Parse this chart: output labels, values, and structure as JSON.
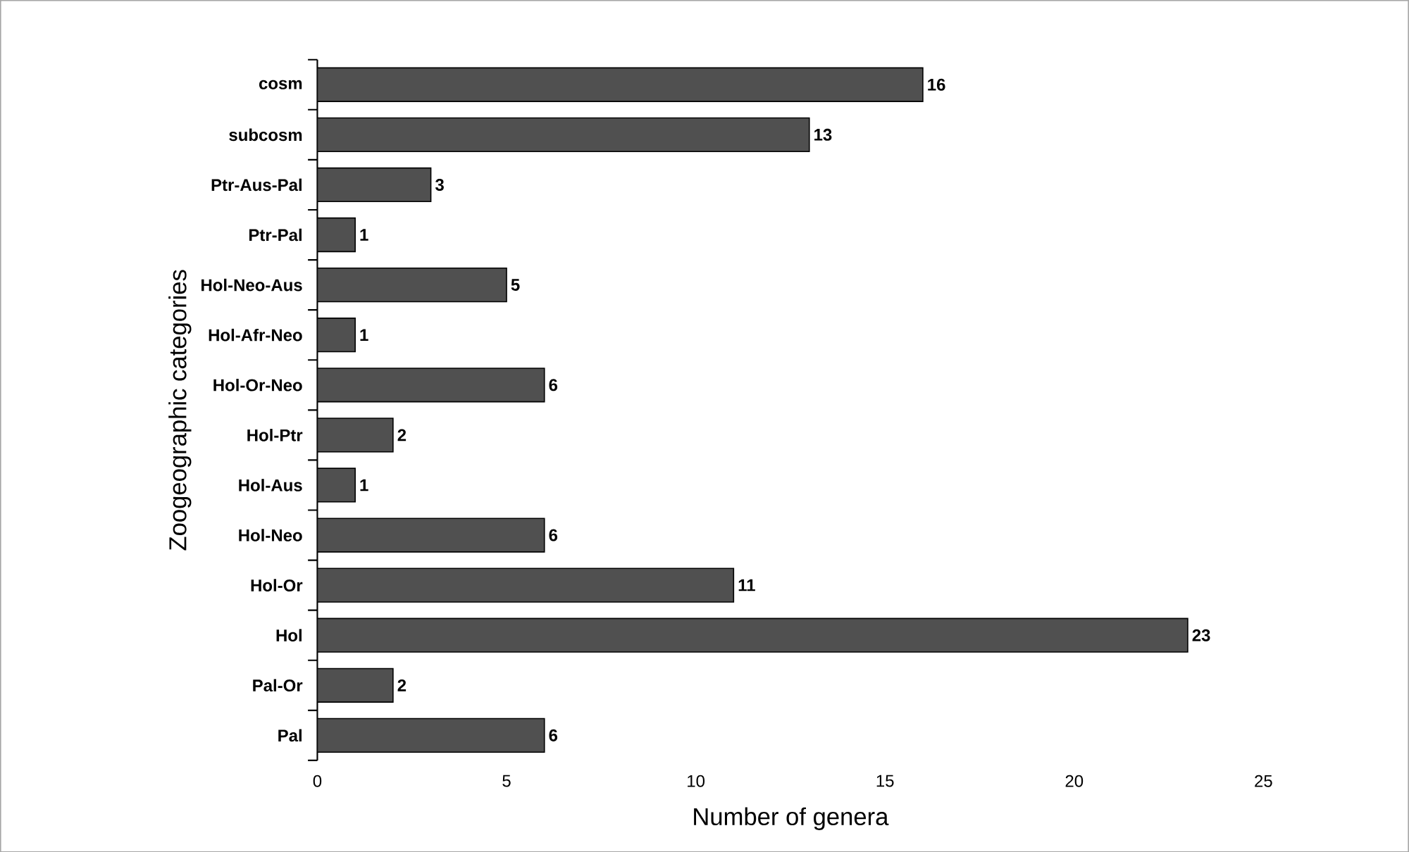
{
  "chart_data": {
    "type": "bar",
    "orientation": "horizontal",
    "xlabel": "Number of genera",
    "ylabel": "Zoogeographic categories",
    "categories": [
      "cosm",
      "subcosm",
      "Ptr-Aus-Pal",
      "Ptr-Pal",
      "Hol-Neo-Aus",
      "Hol-Afr-Neo",
      "Hol-Or-Neo",
      "Hol-Ptr",
      "Hol-Aus",
      "Hol-Neo",
      "Hol-Or",
      "Hol",
      "Pal-Or",
      "Pal"
    ],
    "values": [
      16,
      13,
      3,
      1,
      5,
      1,
      6,
      2,
      1,
      6,
      11,
      23,
      2,
      6
    ],
    "color": "#505050",
    "xlim": [
      0,
      25
    ],
    "xticks": [
      0,
      5,
      10,
      15,
      20,
      25
    ],
    "data_labels": true,
    "grid": false
  }
}
